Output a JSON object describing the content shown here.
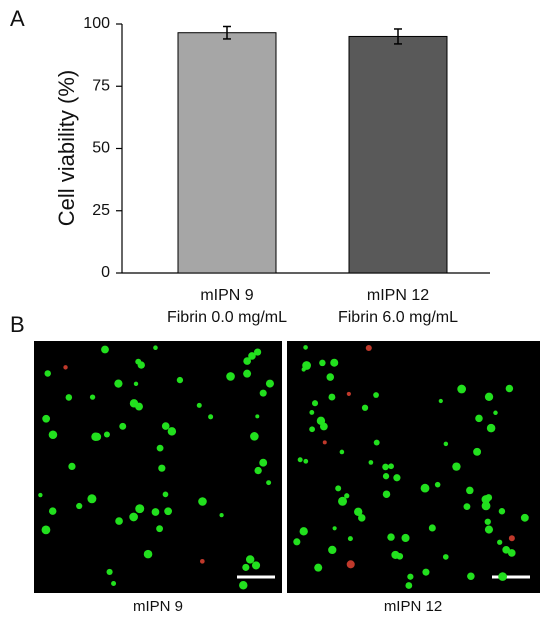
{
  "chart_data": {
    "type": "bar",
    "y_label": "Cell viability (%)",
    "categories": [
      [
        "mIPN 9",
        "Fibrin 0.0 mg/mL"
      ],
      [
        "mIPN 12",
        "Fibrin 6.0 mg/mL"
      ]
    ],
    "values": [
      96.5,
      95
    ],
    "errors": [
      2.5,
      3
    ],
    "colors": [
      "#a6a6a6",
      "#595959"
    ],
    "ylim": [
      0,
      100
    ],
    "yticks": [
      0,
      25,
      50,
      75,
      100
    ]
  },
  "panel_labels": [
    "A",
    "B"
  ],
  "images": [
    {
      "caption": "mIPN 9"
    },
    {
      "caption": "mIPN 12"
    }
  ]
}
